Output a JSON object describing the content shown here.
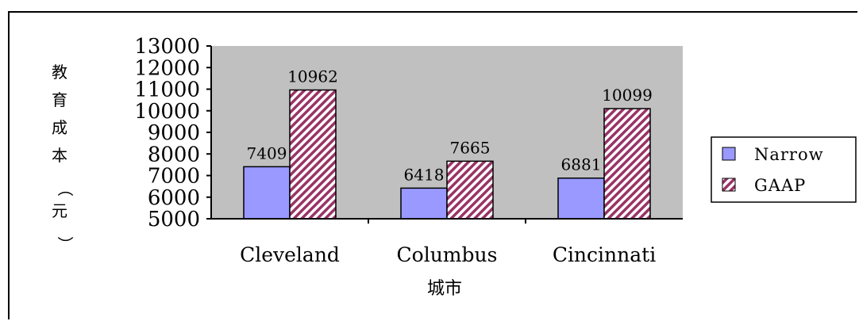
{
  "chart_data": {
    "type": "bar",
    "categories": [
      "Cleveland",
      "Columbus",
      "Cincinnati"
    ],
    "series": [
      {
        "name": "Narrow",
        "values": [
          7409,
          6418,
          6881
        ],
        "color": "#9999ff",
        "pattern": "solid"
      },
      {
        "name": "GAAP",
        "values": [
          10962,
          7665,
          10099
        ],
        "color": "#993366",
        "pattern": "diagonal-hatch"
      }
    ],
    "ylabel": "教育成本（元）",
    "xlabel": "城市",
    "ylim": [
      5000,
      13000
    ],
    "yticks": [
      5000,
      6000,
      7000,
      8000,
      9000,
      10000,
      11000,
      12000,
      13000
    ],
    "plot_background": "#c0c0c0",
    "grid": false,
    "legend_position": "right"
  }
}
